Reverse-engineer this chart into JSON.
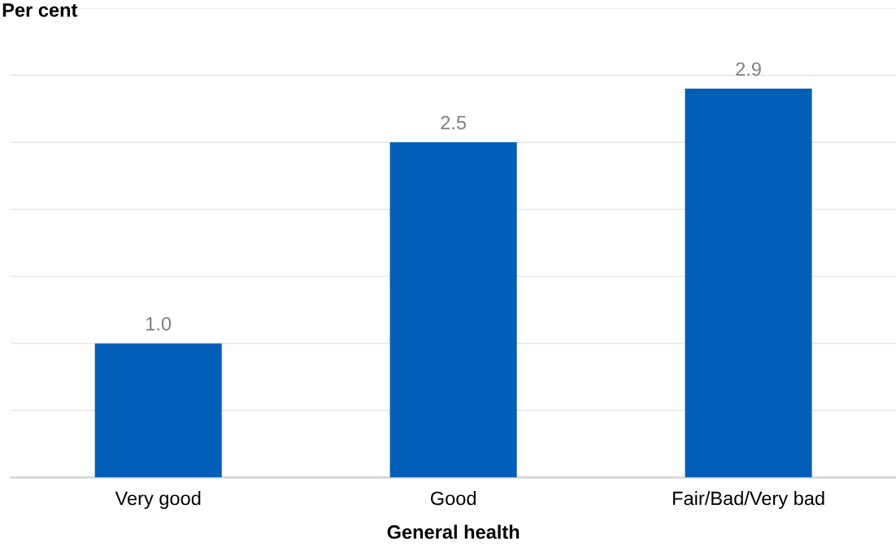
{
  "chart_data": {
    "type": "bar",
    "ylabel": "Per cent",
    "xlabel": "General health",
    "categories": [
      "Very good",
      "Good",
      "Fair/Bad/Very bad"
    ],
    "values": [
      1.0,
      2.5,
      2.9
    ],
    "color": "#005eb8",
    "ylim": [
      0,
      3.5
    ],
    "yticks": [
      {
        "value": 0,
        "label": null
      },
      {
        "value": 0.5,
        "label": null
      },
      {
        "value": 1,
        "label": null
      },
      {
        "value": 1.5,
        "label": null
      },
      {
        "value": 2,
        "label": null
      },
      {
        "value": 2.5,
        "label": null
      },
      {
        "value": 3,
        "label": null
      },
      {
        "value": 3.5,
        "label": null
      }
    ],
    "tick_labels": "x",
    "grid": "y",
    "value_labels": [
      "1.0",
      "2.5",
      "2.9"
    ],
    "legend": false
  }
}
